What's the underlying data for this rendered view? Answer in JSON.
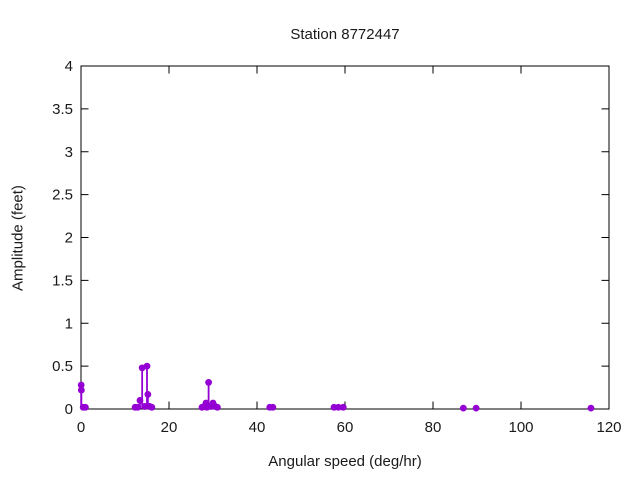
{
  "chart_data": {
    "type": "scatter",
    "style": "impulses-with-points",
    "title": "Station 8772447",
    "xlabel": "Angular speed (deg/hr)",
    "ylabel": "Amplitude (feet)",
    "xlim": [
      0,
      120
    ],
    "ylim": [
      0,
      4
    ],
    "xticks": [
      0,
      20,
      40,
      60,
      80,
      100,
      120
    ],
    "xtick_labels": [
      "0",
      "20",
      "40",
      "60",
      "80",
      "100",
      "120"
    ],
    "yticks": [
      0,
      0.5,
      1,
      1.5,
      2,
      2.5,
      3,
      3.5,
      4
    ],
    "ytick_labels": [
      "0",
      "0.5",
      "1",
      "1.5",
      "2",
      "2.5",
      "3",
      "3.5",
      "4"
    ],
    "grid": "off",
    "legend": "none",
    "tick_style": "inward-mirrored",
    "point_color": "#9400d3",
    "frame_color": "#000000",
    "text_color": "#1a1a1a",
    "points": [
      {
        "x": 0.04,
        "y": 0.28
      },
      {
        "x": 0.08,
        "y": 0.22
      },
      {
        "x": 0.5,
        "y": 0.02
      },
      {
        "x": 1.0,
        "y": 0.02
      },
      {
        "x": 12.3,
        "y": 0.02
      },
      {
        "x": 12.9,
        "y": 0.02
      },
      {
        "x": 13.4,
        "y": 0.1
      },
      {
        "x": 13.9,
        "y": 0.48
      },
      {
        "x": 14.5,
        "y": 0.03
      },
      {
        "x": 15.0,
        "y": 0.5
      },
      {
        "x": 15.2,
        "y": 0.17
      },
      {
        "x": 15.6,
        "y": 0.03
      },
      {
        "x": 16.1,
        "y": 0.02
      },
      {
        "x": 27.5,
        "y": 0.02
      },
      {
        "x": 28.0,
        "y": 0.03
      },
      {
        "x": 28.4,
        "y": 0.07
      },
      {
        "x": 28.6,
        "y": 0.02
      },
      {
        "x": 29.0,
        "y": 0.31
      },
      {
        "x": 29.5,
        "y": 0.03
      },
      {
        "x": 30.0,
        "y": 0.07
      },
      {
        "x": 30.5,
        "y": 0.03
      },
      {
        "x": 31.0,
        "y": 0.02
      },
      {
        "x": 42.9,
        "y": 0.02
      },
      {
        "x": 43.6,
        "y": 0.02
      },
      {
        "x": 57.5,
        "y": 0.02
      },
      {
        "x": 58.5,
        "y": 0.02
      },
      {
        "x": 59.6,
        "y": 0.02
      },
      {
        "x": 86.9,
        "y": 0.01
      },
      {
        "x": 89.8,
        "y": 0.01
      },
      {
        "x": 115.9,
        "y": 0.01
      }
    ]
  }
}
